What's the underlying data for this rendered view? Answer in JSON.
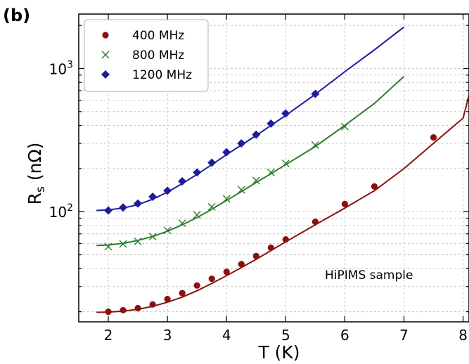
{
  "panel_label": "(b)",
  "chart_data": {
    "type": "scatter",
    "title": "",
    "xlabel": "T (K)",
    "ylabel": "R",
    "ylabel_sub": "s",
    "ylabel_unit": "(nΩ)",
    "x_scale": "linear",
    "y_scale": "log",
    "xlim": [
      1.5,
      8.1
    ],
    "ylim": [
      17,
      2400
    ],
    "x_ticks": [
      2,
      3,
      4,
      5,
      6,
      7,
      8
    ],
    "y_ticks": [
      {
        "value": 100,
        "base": "10",
        "exp": "2"
      },
      {
        "value": 1000,
        "base": "10",
        "exp": "3"
      }
    ],
    "grid": true,
    "legend_position": "top-left",
    "annotation": "HiPIMS sample",
    "series": [
      {
        "name": "400 MHz",
        "color": "#8b1010",
        "marker": "circle",
        "points": [
          [
            2.0,
            20
          ],
          [
            2.25,
            20.5
          ],
          [
            2.5,
            21.2
          ],
          [
            2.75,
            22.5
          ],
          [
            3.0,
            24.5
          ],
          [
            3.25,
            27
          ],
          [
            3.5,
            30.5
          ],
          [
            3.75,
            34
          ],
          [
            4.0,
            38
          ],
          [
            4.25,
            43
          ],
          [
            4.5,
            49
          ],
          [
            4.75,
            56
          ],
          [
            5.0,
            64
          ],
          [
            5.5,
            85
          ],
          [
            6.0,
            113
          ],
          [
            6.5,
            150
          ],
          [
            7.5,
            330
          ]
        ],
        "fit": [
          [
            1.8,
            19.8
          ],
          [
            2.0,
            19.9
          ],
          [
            2.25,
            20.2
          ],
          [
            2.5,
            20.8
          ],
          [
            2.75,
            21.8
          ],
          [
            3.0,
            23.3
          ],
          [
            3.25,
            25.3
          ],
          [
            3.5,
            28
          ],
          [
            3.75,
            31.5
          ],
          [
            4.0,
            35.7
          ],
          [
            4.25,
            40.7
          ],
          [
            4.5,
            46.5
          ],
          [
            4.75,
            53.5
          ],
          [
            5.0,
            61.5
          ],
          [
            5.5,
            81
          ],
          [
            6.0,
            106
          ],
          [
            6.5,
            140
          ],
          [
            7.0,
            200
          ],
          [
            7.5,
            300
          ],
          [
            8.0,
            450
          ],
          [
            8.1,
            650
          ]
        ]
      },
      {
        "name": "800 MHz",
        "color": "#2f7d2f",
        "marker": "x",
        "points": [
          [
            2.0,
            57
          ],
          [
            2.25,
            59.5
          ],
          [
            2.5,
            62
          ],
          [
            2.75,
            67
          ],
          [
            3.0,
            74
          ],
          [
            3.25,
            83
          ],
          [
            3.5,
            95
          ],
          [
            3.75,
            108
          ],
          [
            4.0,
            123
          ],
          [
            4.25,
            142
          ],
          [
            4.5,
            165
          ],
          [
            4.75,
            188
          ],
          [
            5.0,
            217
          ],
          [
            5.5,
            292
          ],
          [
            6.0,
            393
          ]
        ],
        "fit": [
          [
            1.8,
            58
          ],
          [
            2.0,
            58.5
          ],
          [
            2.25,
            60
          ],
          [
            2.5,
            63
          ],
          [
            2.75,
            67
          ],
          [
            3.0,
            73
          ],
          [
            3.25,
            81
          ],
          [
            3.5,
            91
          ],
          [
            3.75,
            104
          ],
          [
            4.0,
            120
          ],
          [
            4.25,
            138
          ],
          [
            4.5,
            160
          ],
          [
            4.75,
            184
          ],
          [
            5.0,
            213
          ],
          [
            5.5,
            285
          ],
          [
            6.0,
            400
          ],
          [
            6.5,
            570
          ],
          [
            7.0,
            880
          ]
        ]
      },
      {
        "name": "1200 MHz",
        "color": "#1c1c9c",
        "marker": "diamond",
        "points": [
          [
            2.0,
            102
          ],
          [
            2.25,
            107
          ],
          [
            2.5,
            114
          ],
          [
            2.75,
            127
          ],
          [
            3.0,
            140
          ],
          [
            3.25,
            163
          ],
          [
            3.5,
            188
          ],
          [
            3.75,
            220
          ],
          [
            4.0,
            260
          ],
          [
            4.25,
            300
          ],
          [
            4.5,
            345
          ],
          [
            4.75,
            412
          ],
          [
            5.0,
            485
          ],
          [
            5.5,
            665
          ]
        ],
        "fit": [
          [
            1.8,
            102
          ],
          [
            2.0,
            103
          ],
          [
            2.25,
            106
          ],
          [
            2.5,
            112
          ],
          [
            2.75,
            122
          ],
          [
            3.0,
            137
          ],
          [
            3.25,
            157
          ],
          [
            3.5,
            182
          ],
          [
            3.75,
            213
          ],
          [
            4.0,
            250
          ],
          [
            4.25,
            292
          ],
          [
            4.5,
            340
          ],
          [
            4.75,
            400
          ],
          [
            5.0,
            470
          ],
          [
            5.5,
            660
          ],
          [
            6.0,
            950
          ],
          [
            6.5,
            1350
          ],
          [
            7.0,
            1950
          ]
        ]
      }
    ]
  }
}
